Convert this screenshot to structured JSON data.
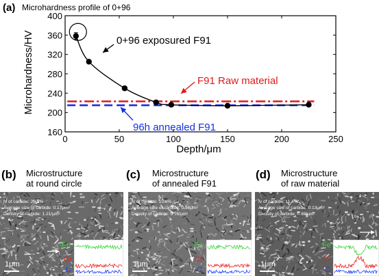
{
  "chart_data": {
    "type": "line",
    "panel_label": "(a)",
    "title": "Microhardness profile of 0+96",
    "xlabel": "Depth/μm",
    "ylabel": "Microhardness/HV",
    "xlim": [
      0,
      250
    ],
    "ylim": [
      160,
      400
    ],
    "xticks": [
      0,
      50,
      100,
      150,
      200,
      250
    ],
    "yticks": [
      160,
      200,
      240,
      280,
      320,
      360,
      400
    ],
    "series": [
      {
        "name": "0+96 exposured F91",
        "x": [
          10,
          22,
          55,
          84,
          98,
          150,
          225
        ],
        "y": [
          358,
          305,
          250,
          221,
          216,
          214,
          216
        ],
        "errors": [
          7,
          3,
          4,
          3,
          3,
          3,
          2
        ],
        "color": "#000000"
      }
    ],
    "reference_lines": [
      {
        "name": "F91 Raw material",
        "y": 223,
        "color": "#e01818",
        "style": "dash-dot"
      },
      {
        "name": "96h annealed F91",
        "y": 215,
        "color": "#1430e0",
        "style": "dashed"
      }
    ],
    "highlight": {
      "x": 10,
      "y": 358,
      "shape": "circle"
    }
  },
  "panels": [
    {
      "label": "(b)",
      "title_line1": "Microstructure",
      "title_line2": "at round circle",
      "fv": "fv of carbide:  20.1%",
      "size": "Average size of carbide:  0.17μm²",
      "density": "Density of carbide:  1.21/μm²",
      "scale": "1μm",
      "eds_labels": [
        "Fe",
        "Cr",
        "C"
      ]
    },
    {
      "label": "(c)",
      "title_line1": "Microstructure",
      "title_line2": "of annealed F91",
      "fv": "fv of carbide:  15.6%",
      "size": "Average size of carbide:  0.16μm²",
      "density": "Density of carbide:  0.96/μm²",
      "scale": "1μm",
      "eds_labels": [
        "Fe",
        "Cr",
        "C"
      ]
    },
    {
      "label": "(d)",
      "title_line1": "Microstructure",
      "title_line2": "of raw material",
      "fv": "fv of carbide:  11.4%",
      "size": "Average size of carbide:  0.13μm²",
      "density": "Density of carbide:  0.88/μm²",
      "scale": "1μm",
      "eds_labels": [
        "Fe",
        "Cr",
        "C"
      ]
    }
  ],
  "colors": {
    "fe": "#39d23c",
    "cr": "#e82020",
    "c": "#1a3cff",
    "raw_line": "#e01818",
    "annealed_line": "#1430e0"
  }
}
